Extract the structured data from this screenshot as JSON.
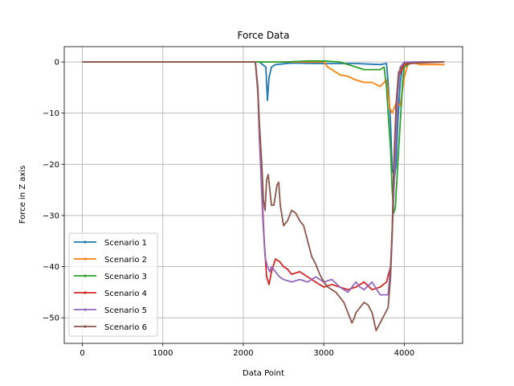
{
  "chart_data": {
    "type": "line",
    "title": "Force Data",
    "xlabel": "Data Point",
    "ylabel": "Force in Z axis",
    "xlim": [
      -225,
      4725
    ],
    "ylim": [
      -55,
      3
    ],
    "xticks": [
      0,
      1000,
      2000,
      3000,
      4000
    ],
    "yticks": [
      0,
      -10,
      -20,
      -30,
      -40,
      -50
    ],
    "xtick_labels": [
      "0",
      "1000",
      "2000",
      "3000",
      "4000"
    ],
    "ytick_labels": [
      "0",
      "−10",
      "−20",
      "−30",
      "−40",
      "−50"
    ],
    "grid": true,
    "legend_position": "lower-left",
    "series": [
      {
        "name": "Scenario 1",
        "color": "#1f77b4",
        "points": [
          [
            0,
            0
          ],
          [
            500,
            0
          ],
          [
            1000,
            0
          ],
          [
            1500,
            0
          ],
          [
            2000,
            0
          ],
          [
            2200,
            0
          ],
          [
            2280,
            -1
          ],
          [
            2300,
            -7.5
          ],
          [
            2320,
            -3
          ],
          [
            2350,
            -1
          ],
          [
            2400,
            -0.5
          ],
          [
            2600,
            -0.2
          ],
          [
            3000,
            -0.3
          ],
          [
            3400,
            -0.3
          ],
          [
            3700,
            -0.5
          ],
          [
            3780,
            -0.3
          ],
          [
            3800,
            -4
          ],
          [
            3830,
            -12
          ],
          [
            3850,
            -21
          ],
          [
            3880,
            -22.5
          ],
          [
            3900,
            -20
          ],
          [
            3920,
            -12
          ],
          [
            3950,
            -4
          ],
          [
            3980,
            -1
          ],
          [
            4000,
            -0.5
          ],
          [
            4200,
            0
          ],
          [
            4500,
            0
          ]
        ]
      },
      {
        "name": "Scenario 2",
        "color": "#ff7f0e",
        "points": [
          [
            0,
            0
          ],
          [
            500,
            0
          ],
          [
            1000,
            0
          ],
          [
            1500,
            0
          ],
          [
            2000,
            0
          ],
          [
            2200,
            0
          ],
          [
            2400,
            0
          ],
          [
            2700,
            0
          ],
          [
            3000,
            0
          ],
          [
            3050,
            -1
          ],
          [
            3100,
            -1.5
          ],
          [
            3200,
            -2.5
          ],
          [
            3300,
            -2.8
          ],
          [
            3400,
            -3.5
          ],
          [
            3500,
            -4
          ],
          [
            3600,
            -4
          ],
          [
            3700,
            -4.8
          ],
          [
            3780,
            -3.5
          ],
          [
            3800,
            -6
          ],
          [
            3820,
            -9
          ],
          [
            3850,
            -10
          ],
          [
            3900,
            -8
          ],
          [
            3950,
            -8.5
          ],
          [
            4000,
            -3
          ],
          [
            4050,
            0
          ],
          [
            4200,
            -0.5
          ],
          [
            4500,
            -0.5
          ]
        ]
      },
      {
        "name": "Scenario 3",
        "color": "#2ca02c",
        "points": [
          [
            0,
            0
          ],
          [
            500,
            0
          ],
          [
            1000,
            0
          ],
          [
            1500,
            0
          ],
          [
            2000,
            0
          ],
          [
            2200,
            0
          ],
          [
            2300,
            0
          ],
          [
            2500,
            0
          ],
          [
            2800,
            0.2
          ],
          [
            3000,
            0.2
          ],
          [
            3200,
            0
          ],
          [
            3400,
            -1
          ],
          [
            3500,
            -1.5
          ],
          [
            3700,
            -1.5
          ],
          [
            3750,
            -1
          ],
          [
            3780,
            -5
          ],
          [
            3800,
            -10
          ],
          [
            3830,
            -17
          ],
          [
            3850,
            -25
          ],
          [
            3870,
            -29.5
          ],
          [
            3890,
            -28.5
          ],
          [
            3920,
            -20
          ],
          [
            3950,
            -12
          ],
          [
            3980,
            -4
          ],
          [
            4000,
            -1
          ],
          [
            4100,
            0
          ],
          [
            4500,
            0
          ]
        ]
      },
      {
        "name": "Scenario 4",
        "color": "#d62728",
        "points": [
          [
            0,
            0
          ],
          [
            500,
            0
          ],
          [
            1000,
            0
          ],
          [
            1500,
            0
          ],
          [
            2000,
            0
          ],
          [
            2150,
            0
          ],
          [
            2180,
            -5
          ],
          [
            2200,
            -15
          ],
          [
            2230,
            -25
          ],
          [
            2260,
            -35
          ],
          [
            2290,
            -42
          ],
          [
            2320,
            -43.5
          ],
          [
            2350,
            -41
          ],
          [
            2400,
            -38.5
          ],
          [
            2450,
            -39
          ],
          [
            2500,
            -40
          ],
          [
            2550,
            -40.5
          ],
          [
            2600,
            -41.5
          ],
          [
            2700,
            -41
          ],
          [
            2800,
            -42
          ],
          [
            2900,
            -43
          ],
          [
            3000,
            -44
          ],
          [
            3100,
            -43.5
          ],
          [
            3200,
            -44
          ],
          [
            3300,
            -44.5
          ],
          [
            3400,
            -44
          ],
          [
            3500,
            -43
          ],
          [
            3600,
            -44.5
          ],
          [
            3700,
            -44
          ],
          [
            3780,
            -43
          ],
          [
            3830,
            -40
          ],
          [
            3850,
            -33
          ],
          [
            3870,
            -22
          ],
          [
            3900,
            -10
          ],
          [
            3930,
            -3
          ],
          [
            4000,
            -0.5
          ],
          [
            4200,
            0
          ],
          [
            4500,
            0
          ]
        ]
      },
      {
        "name": "Scenario 5",
        "color": "#9467bd",
        "points": [
          [
            0,
            0
          ],
          [
            500,
            0
          ],
          [
            1000,
            0
          ],
          [
            1500,
            0
          ],
          [
            2000,
            0
          ],
          [
            2150,
            0
          ],
          [
            2180,
            -6
          ],
          [
            2210,
            -18
          ],
          [
            2240,
            -30
          ],
          [
            2270,
            -38
          ],
          [
            2300,
            -40
          ],
          [
            2330,
            -41
          ],
          [
            2350,
            -40
          ],
          [
            2400,
            -41
          ],
          [
            2450,
            -42
          ],
          [
            2500,
            -42.5
          ],
          [
            2600,
            -43
          ],
          [
            2700,
            -42.5
          ],
          [
            2800,
            -43
          ],
          [
            2900,
            -42
          ],
          [
            3000,
            -43
          ],
          [
            3100,
            -42.5
          ],
          [
            3200,
            -44
          ],
          [
            3300,
            -45
          ],
          [
            3400,
            -43
          ],
          [
            3450,
            -44
          ],
          [
            3500,
            -44.5
          ],
          [
            3600,
            -43
          ],
          [
            3700,
            -45.5
          ],
          [
            3800,
            -45.5
          ],
          [
            3830,
            -40
          ],
          [
            3860,
            -30
          ],
          [
            3890,
            -18
          ],
          [
            3920,
            -6
          ],
          [
            3950,
            -1
          ],
          [
            4000,
            0
          ],
          [
            4500,
            0
          ]
        ]
      },
      {
        "name": "Scenario 6",
        "color": "#8c564b",
        "points": [
          [
            0,
            0
          ],
          [
            500,
            0
          ],
          [
            1000,
            0
          ],
          [
            1500,
            0
          ],
          [
            2000,
            0
          ],
          [
            2150,
            0
          ],
          [
            2180,
            -5
          ],
          [
            2200,
            -12
          ],
          [
            2230,
            -20
          ],
          [
            2250,
            -27
          ],
          [
            2270,
            -29
          ],
          [
            2290,
            -23
          ],
          [
            2310,
            -22
          ],
          [
            2330,
            -25
          ],
          [
            2350,
            -28
          ],
          [
            2380,
            -28
          ],
          [
            2420,
            -24
          ],
          [
            2440,
            -23.5
          ],
          [
            2460,
            -28
          ],
          [
            2500,
            -32
          ],
          [
            2550,
            -31
          ],
          [
            2600,
            -29
          ],
          [
            2650,
            -29.5
          ],
          [
            2700,
            -31
          ],
          [
            2750,
            -32
          ],
          [
            2800,
            -35
          ],
          [
            2850,
            -38
          ],
          [
            2900,
            -39.5
          ],
          [
            2950,
            -41.5
          ],
          [
            3000,
            -43
          ],
          [
            3050,
            -44
          ],
          [
            3100,
            -44.5
          ],
          [
            3150,
            -45
          ],
          [
            3200,
            -46
          ],
          [
            3250,
            -47
          ],
          [
            3300,
            -49
          ],
          [
            3350,
            -51
          ],
          [
            3380,
            -50
          ],
          [
            3400,
            -49
          ],
          [
            3450,
            -48
          ],
          [
            3500,
            -47
          ],
          [
            3550,
            -47.5
          ],
          [
            3600,
            -49
          ],
          [
            3650,
            -52.5
          ],
          [
            3700,
            -51
          ],
          [
            3750,
            -49.5
          ],
          [
            3800,
            -48
          ],
          [
            3830,
            -42
          ],
          [
            3850,
            -34
          ],
          [
            3870,
            -20
          ],
          [
            3900,
            -8
          ],
          [
            3930,
            -2
          ],
          [
            4000,
            -0.3
          ],
          [
            4500,
            0
          ]
        ]
      }
    ]
  }
}
